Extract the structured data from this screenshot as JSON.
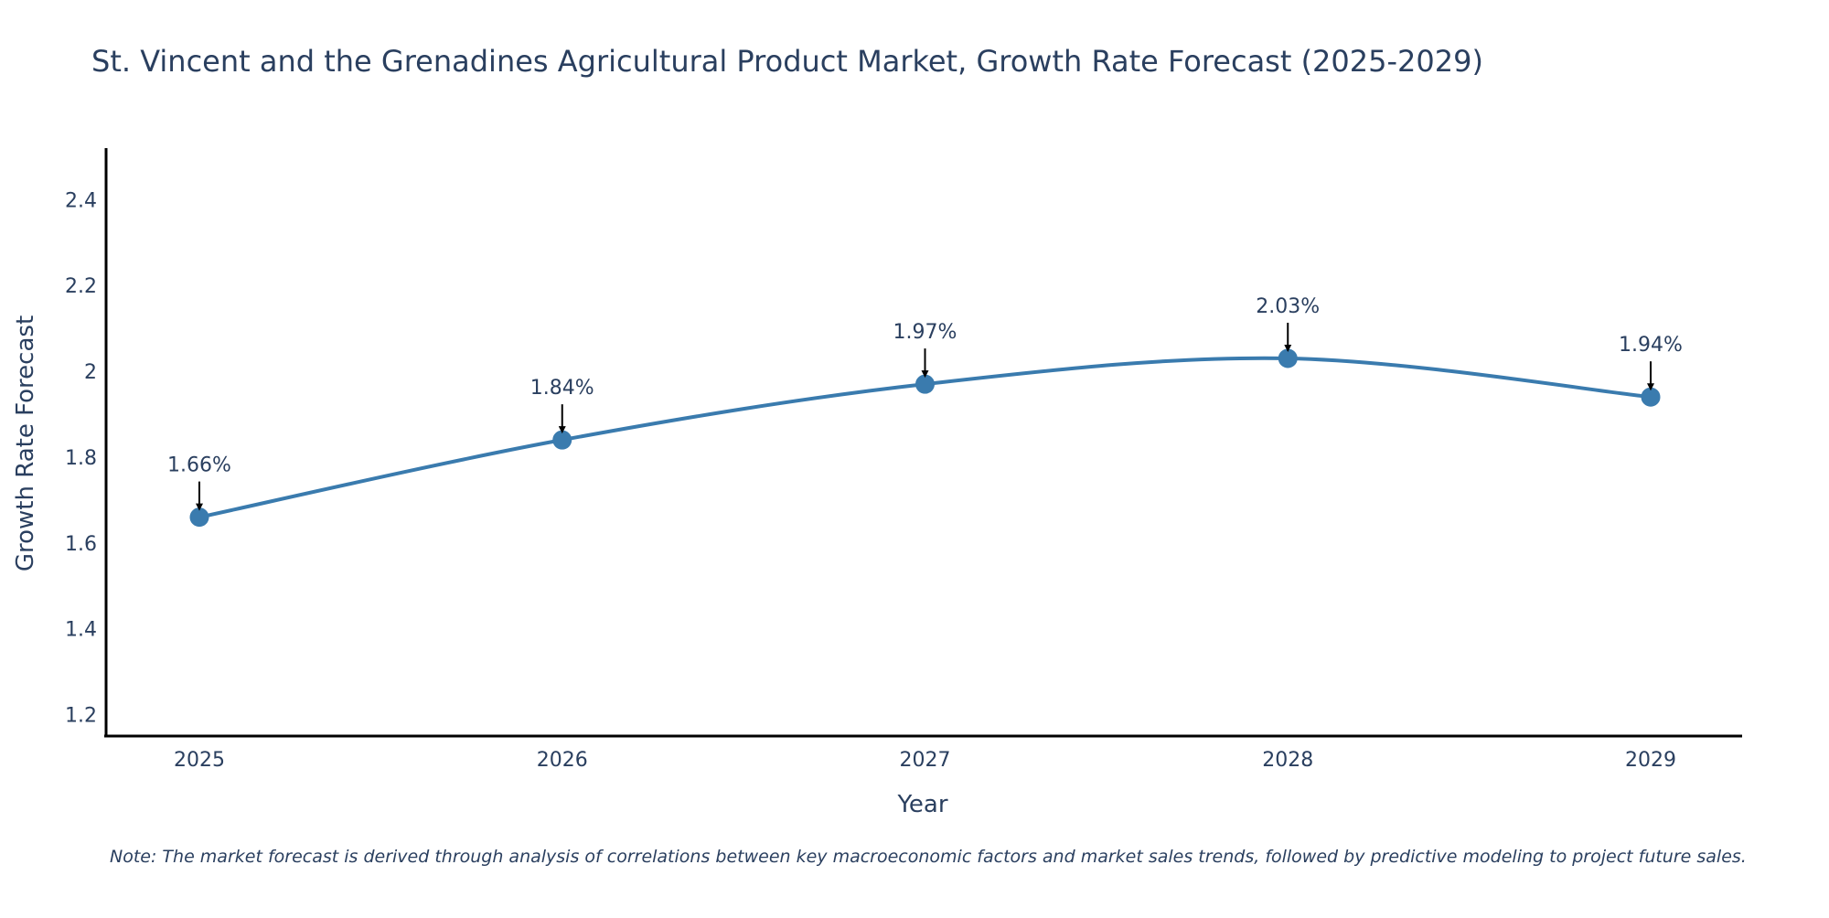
{
  "chart_data": {
    "type": "line",
    "title": "St. Vincent and the Grenadines Agricultural Product Market, Growth Rate Forecast (2025-2029)",
    "xlabel": "Year",
    "ylabel": "Growth Rate Forecast",
    "x": [
      "2025",
      "2026",
      "2027",
      "2028",
      "2029"
    ],
    "series": [
      {
        "name": "Growth Rate Forecast",
        "values": [
          1.66,
          1.84,
          1.97,
          2.03,
          1.94
        ],
        "labels": [
          "1.66%",
          "1.84%",
          "1.97%",
          "2.03%",
          "1.94%"
        ],
        "color": "#3a7bae"
      }
    ],
    "ylim": [
      1.15,
      2.52
    ],
    "y_ticks": [
      1.2,
      1.4,
      1.6,
      1.8,
      2,
      2.2,
      2.4
    ],
    "y_tick_labels": [
      "1.2",
      "1.4",
      "1.6",
      "1.8",
      "2",
      "2.2",
      "2.4"
    ],
    "grid": false,
    "smoothing": "spline"
  },
  "note": "Note: The market forecast is derived through analysis of correlations between key macroeconomic factors and market sales trends, followed by predictive modeling to project future sales.",
  "colors": {
    "text": "#2a3f5f",
    "axis": "#000000",
    "line": "#3a7bae",
    "arrow": "#000000"
  }
}
